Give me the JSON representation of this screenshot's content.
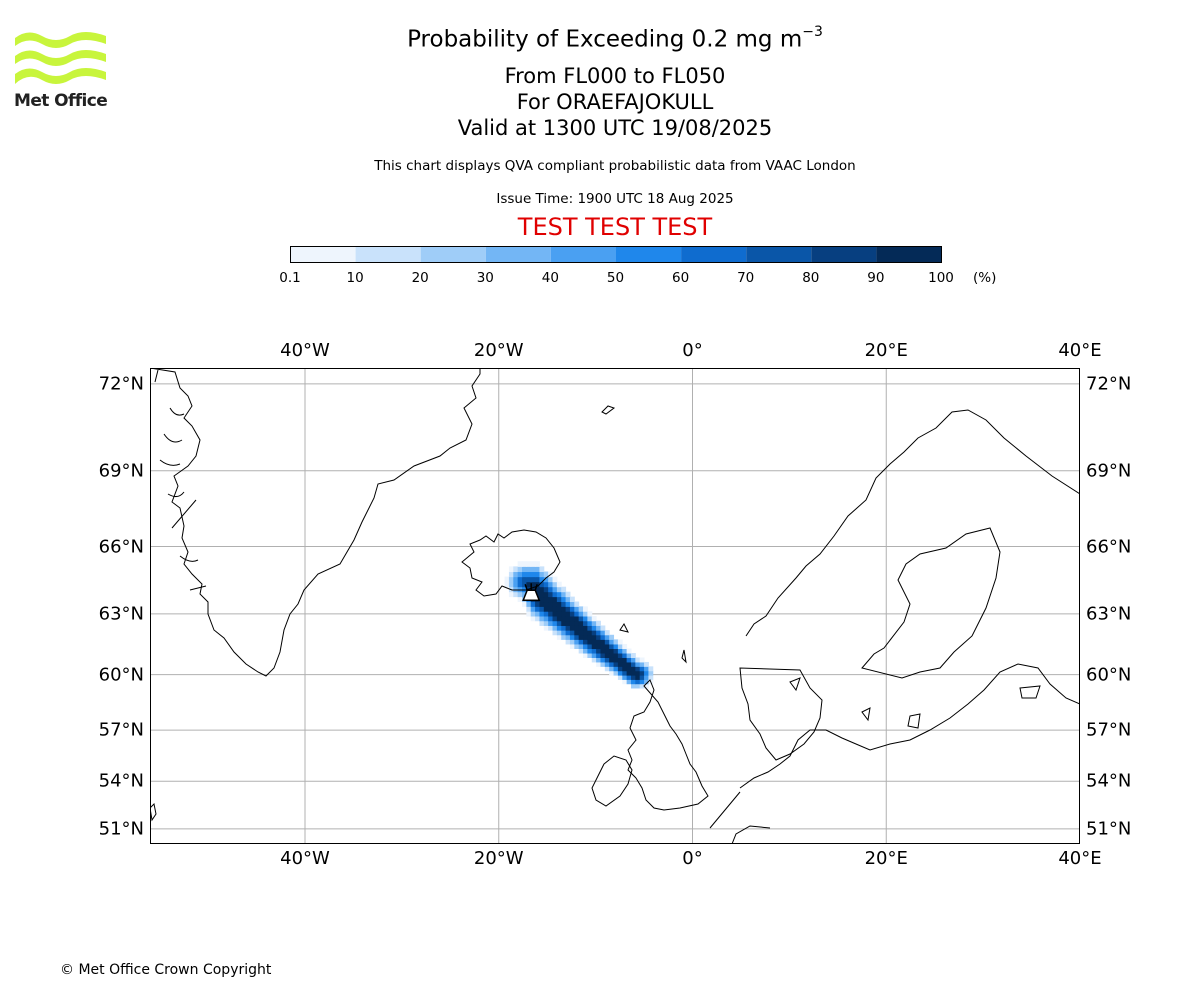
{
  "header": {
    "title_main": "Probability of Exceeding 0.2 mg m",
    "title_exponent": "−3",
    "flight_levels": "From FL000 to FL050",
    "volcano": "For ORAEFAJOKULL",
    "valid_time": "Valid at 1300 UTC 19/08/2025",
    "disclaimer": "This chart displays QVA compliant probabilistic data from VAAC London",
    "issue_time": "Issue Time: 1900 UTC 18 Aug 2025",
    "test_banner": "TEST TEST TEST"
  },
  "logo": {
    "text": "Met Office",
    "color": "#c8f53c"
  },
  "colorbar": {
    "ticks": [
      "0.1",
      "10",
      "20",
      "30",
      "40",
      "50",
      "60",
      "70",
      "80",
      "90",
      "100"
    ],
    "unit": "(%)",
    "colors": [
      "#eef5fd",
      "#c9e2fb",
      "#9fcdf8",
      "#73b6f5",
      "#4aa0f2",
      "#1f87eb",
      "#0f6ccf",
      "#0a56a8",
      "#073f80",
      "#042a57"
    ]
  },
  "map": {
    "lon_labels": [
      "40°W",
      "20°W",
      "0°",
      "20°E",
      "40°E"
    ],
    "lat_labels": [
      "72°N",
      "69°N",
      "66°N",
      "63°N",
      "60°N",
      "57°N",
      "54°N",
      "51°N"
    ],
    "extent": {
      "lon_min": -56,
      "lon_max": 40,
      "lat_min": 50,
      "lat_max": 72.5
    },
    "grid": true,
    "volcano_marker": {
      "name": "ORAEFAJOKULL",
      "lat": 64.0,
      "lon": -16.65,
      "icon": "volcano-icon"
    }
  },
  "footer": {
    "copyright": "© Met Office Crown Copyright"
  }
}
